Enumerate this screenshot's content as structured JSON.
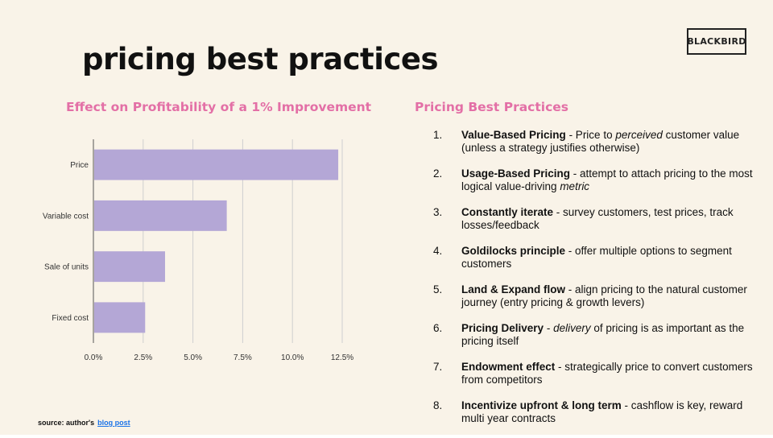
{
  "slide": {
    "title": "pricing best practices",
    "logo_text": "BLACKBIRD"
  },
  "chart_heading": "Effect on Profitability of a  1% Improvement",
  "list_heading": "Pricing Best Practices",
  "chart_data": {
    "type": "bar",
    "orientation": "horizontal",
    "title": "Effect on Profitability of a  1% Improvement",
    "categories": [
      "Price",
      "Variable cost",
      "Sale of units",
      "Fixed cost"
    ],
    "values": [
      12.3,
      6.7,
      3.6,
      2.6
    ],
    "x_ticks": [
      "0.0%",
      "2.5%",
      "5.0%",
      "7.5%",
      "10.0%",
      "12.5%"
    ],
    "xlim": [
      0,
      12.5
    ],
    "grid": "vertical",
    "bar_color": "#b4a7d6"
  },
  "practices": [
    {
      "num": "1.",
      "title": "Value-Based Pricing",
      "segments": [
        {
          "text": " - Price to ",
          "em": false
        },
        {
          "text": "perceived",
          "em": true
        },
        {
          "text": " customer value (unless a strategy justifies otherwise)",
          "em": false
        }
      ]
    },
    {
      "num": "2.",
      "title": "Usage-Based Pricing",
      "segments": [
        {
          "text": " - attempt to attach pricing to the most logical value-driving ",
          "em": false
        },
        {
          "text": "metric",
          "em": true
        }
      ]
    },
    {
      "num": "3.",
      "title": "Constantly iterate",
      "segments": [
        {
          "text": " - survey customers, test prices, track losses/feedback",
          "em": false
        }
      ]
    },
    {
      "num": "4.",
      "title": "Goldilocks principle",
      "segments": [
        {
          "text": " - offer multiple options to segment customers",
          "em": false
        }
      ]
    },
    {
      "num": "5.",
      "title": "Land & Expand flow",
      "segments": [
        {
          "text": " - align pricing to the natural customer journey (entry pricing & growth levers)",
          "em": false
        }
      ]
    },
    {
      "num": "6.",
      "title": "Pricing Delivery",
      "segments": [
        {
          "text": " - ",
          "em": false
        },
        {
          "text": "delivery",
          "em": true
        },
        {
          "text": " of pricing is as important as the pricing itself",
          "em": false
        }
      ]
    },
    {
      "num": "7.",
      "title": "Endowment effect",
      "segments": [
        {
          "text": " - strategically price to convert customers from competitors",
          "em": false
        }
      ]
    },
    {
      "num": "8.",
      "title": "Incentivize upfront & long term",
      "segments": [
        {
          "text": " - cashflow is key, reward multi year contracts",
          "em": false
        }
      ]
    }
  ],
  "source": {
    "label": "source: author's",
    "link_text": "blog post"
  }
}
